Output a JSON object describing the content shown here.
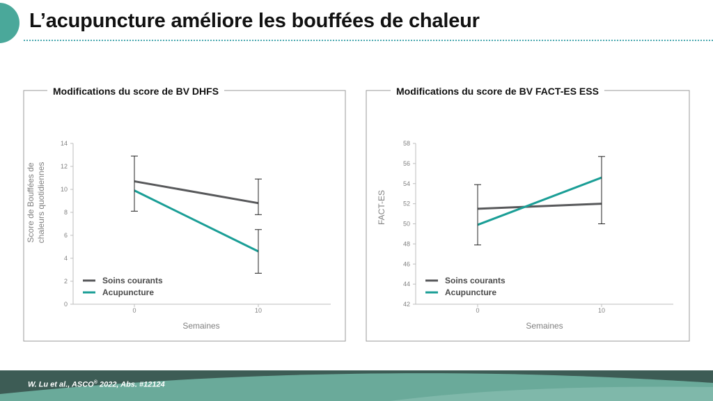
{
  "slide": {
    "title": "L’acupuncture améliore les bouffées de chaleur"
  },
  "footer": {
    "citation_pre": "W. Lu  et al., ASCO",
    "citation_sup": "®",
    "citation_post": " 2022, Abs. #12124"
  },
  "colors": {
    "accent": "#4aa89a",
    "soins": "#58595b",
    "acupuncture": "#1a9e96",
    "footer_dark": "#3d5c55",
    "footer_light": "#6aaa9a"
  },
  "chart_data": [
    {
      "type": "line",
      "title": "Modifications  du score de BV DHFS",
      "xlabel": "Semaines",
      "ylabel": [
        "Score de Bouffées de",
        "chaleurs quotidiennes"
      ],
      "x": [
        0,
        10
      ],
      "x_tick_labels": [
        "0",
        "10"
      ],
      "ylim": [
        0,
        14
      ],
      "y_ticks": [
        0,
        2,
        4,
        6,
        8,
        10,
        12,
        14
      ],
      "legend_position": "bottom-left",
      "grid": false,
      "series": [
        {
          "name": "Soins courants",
          "color": "#58595b",
          "values": [
            10.7,
            8.8
          ],
          "error_low": [
            8.1,
            7.8
          ],
          "error_high": [
            12.9,
            10.9
          ]
        },
        {
          "name": "Acupuncture",
          "color": "#1a9e96",
          "values": [
            9.9,
            4.6
          ],
          "error_low": [
            null,
            2.7
          ],
          "error_high": [
            null,
            6.5
          ]
        }
      ]
    },
    {
      "type": "line",
      "title": "Modifications  du score de BV FACT-ES ESS",
      "xlabel": "Semaines",
      "ylabel": [
        "FACT-ES"
      ],
      "x": [
        0,
        10
      ],
      "x_tick_labels": [
        "0",
        "10"
      ],
      "ylim": [
        42,
        58
      ],
      "y_ticks": [
        42,
        44,
        46,
        48,
        50,
        52,
        54,
        56,
        58
      ],
      "legend_position": "bottom-left",
      "grid": false,
      "series": [
        {
          "name": "Soins courants",
          "color": "#58595b",
          "values": [
            51.5,
            52.0
          ],
          "error_low": [
            47.9,
            50.0
          ],
          "error_high": [
            53.9,
            56.7
          ]
        },
        {
          "name": "Acupuncture",
          "color": "#1a9e96",
          "values": [
            49.9,
            54.6
          ],
          "error_low": [
            null,
            null
          ],
          "error_high": [
            null,
            null
          ]
        }
      ]
    }
  ]
}
